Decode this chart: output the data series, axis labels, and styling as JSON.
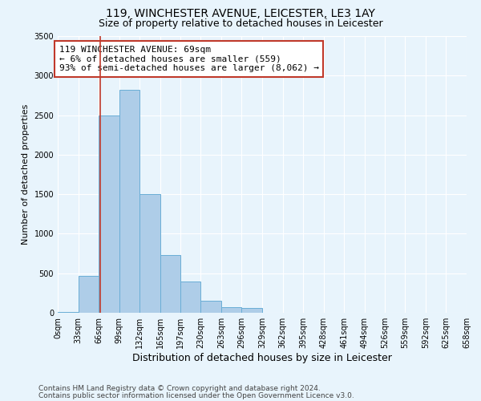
{
  "title_line1": "119, WINCHESTER AVENUE, LEICESTER, LE3 1AY",
  "title_line2": "Size of property relative to detached houses in Leicester",
  "xlabel": "Distribution of detached houses by size in Leicester",
  "ylabel": "Number of detached properties",
  "bin_edges": [
    0,
    33,
    66,
    99,
    132,
    165,
    197,
    230,
    263,
    296,
    329,
    362,
    395,
    428,
    461,
    494,
    526,
    559,
    592,
    625,
    658
  ],
  "bin_counts": [
    10,
    470,
    2500,
    2820,
    1500,
    730,
    400,
    150,
    70,
    60,
    0,
    0,
    0,
    0,
    0,
    0,
    0,
    0,
    0,
    0
  ],
  "bar_color": "#aecde8",
  "bar_edge_color": "#6aaed6",
  "vline_x": 69,
  "vline_color": "#c0392b",
  "annotation_text": "119 WINCHESTER AVENUE: 69sqm\n← 6% of detached houses are smaller (559)\n93% of semi-detached houses are larger (8,062) →",
  "annotation_box_color": "white",
  "annotation_box_edge_color": "#c0392b",
  "ylim": [
    0,
    3500
  ],
  "yticks": [
    0,
    500,
    1000,
    1500,
    2000,
    2500,
    3000,
    3500
  ],
  "tick_labels": [
    "0sqm",
    "33sqm",
    "66sqm",
    "99sqm",
    "132sqm",
    "165sqm",
    "197sqm",
    "230sqm",
    "263sqm",
    "296sqm",
    "329sqm",
    "362sqm",
    "395sqm",
    "428sqm",
    "461sqm",
    "494sqm",
    "526sqm",
    "559sqm",
    "592sqm",
    "625sqm",
    "658sqm"
  ],
  "footnote1": "Contains HM Land Registry data © Crown copyright and database right 2024.",
  "footnote2": "Contains public sector information licensed under the Open Government Licence v3.0.",
  "background_color": "#e8f4fc",
  "plot_bg_color": "#e8f4fc",
  "title_fontsize": 10,
  "subtitle_fontsize": 9,
  "ylabel_fontsize": 8,
  "xlabel_fontsize": 9,
  "annotation_fontsize": 8,
  "footnote_fontsize": 6.5,
  "tick_fontsize": 7
}
